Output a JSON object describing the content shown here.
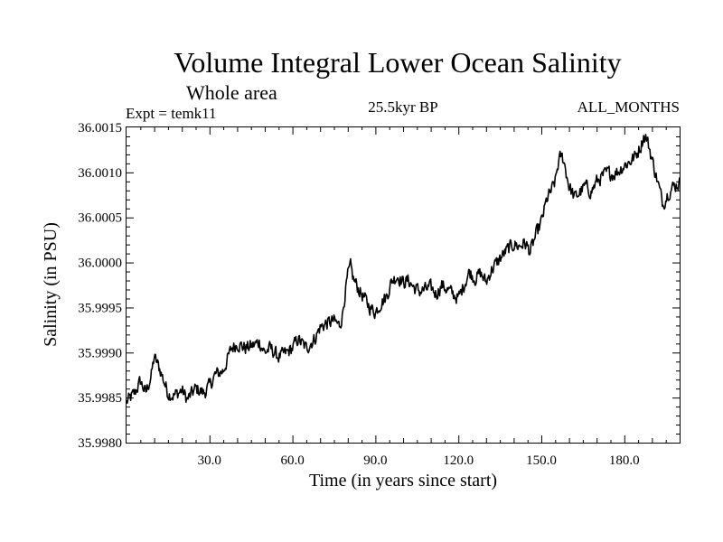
{
  "chart_data": {
    "type": "line",
    "title": "Volume Integral Lower Ocean Salinity",
    "subtitle": "Whole area",
    "experiment": "Expt = temk11",
    "period": "25.5kyr BP",
    "months": "ALL_MONTHS",
    "xlabel": "Time (in years since start)",
    "ylabel": "Salinity (in PSU)",
    "xlim": [
      0,
      200
    ],
    "ylim": [
      35.998,
      36.0015
    ],
    "xticks": [
      {
        "value": 30,
        "label": "30.0"
      },
      {
        "value": 60,
        "label": "60.0"
      },
      {
        "value": 90,
        "label": "90.0"
      },
      {
        "value": 120,
        "label": "120.0"
      },
      {
        "value": 150,
        "label": "150.0"
      },
      {
        "value": 180,
        "label": "180.0"
      }
    ],
    "yticks": [
      {
        "value": 35.998,
        "label": "35.9980"
      },
      {
        "value": 35.9985,
        "label": "35.9985"
      },
      {
        "value": 35.999,
        "label": "35.9990"
      },
      {
        "value": 35.9995,
        "label": "35.9995"
      },
      {
        "value": 36.0,
        "label": "36.0000"
      },
      {
        "value": 36.0005,
        "label": "36.0005"
      },
      {
        "value": 36.001,
        "label": "36.0010"
      },
      {
        "value": 36.0015,
        "label": "36.0015"
      }
    ],
    "series": [
      {
        "name": "Salinity",
        "color": "#000000",
        "noise_amplitude": 7e-05,
        "x": [
          0,
          3,
          5,
          7,
          9,
          10,
          12,
          15,
          17,
          20,
          22,
          25,
          28,
          30,
          32,
          35,
          38,
          40,
          43,
          46,
          48,
          50,
          52,
          55,
          58,
          60,
          62,
          65,
          68,
          70,
          72,
          75,
          77,
          78,
          79,
          80,
          81,
          82,
          84,
          86,
          88,
          90,
          92,
          94,
          96,
          98,
          100,
          102,
          104,
          106,
          108,
          110,
          112,
          114,
          116,
          118,
          120,
          122,
          124,
          126,
          128,
          130,
          132,
          134,
          136,
          138,
          140,
          142,
          144,
          146,
          148,
          150,
          152,
          154,
          155,
          156,
          157,
          158,
          159,
          160,
          162,
          164,
          166,
          168,
          170,
          172,
          174,
          176,
          178,
          180,
          182,
          184,
          186,
          187,
          188,
          189,
          190,
          192,
          194,
          196,
          198,
          200
        ],
        "y": [
          35.99845,
          35.99855,
          35.99868,
          35.99855,
          35.99875,
          35.99895,
          35.99882,
          35.99855,
          35.99852,
          35.99858,
          35.99848,
          35.9986,
          35.99855,
          35.99863,
          35.99875,
          35.9988,
          35.99905,
          35.9991,
          35.99905,
          35.99908,
          35.99912,
          35.999,
          35.99905,
          35.99895,
          35.999,
          35.99905,
          35.99915,
          35.99905,
          35.99915,
          35.99928,
          35.99932,
          35.99935,
          35.9993,
          35.9994,
          35.99965,
          35.99985,
          35.99995,
          35.99982,
          35.9997,
          35.9996,
          35.9995,
          35.99945,
          35.99955,
          35.99962,
          35.9998,
          35.99985,
          35.99978,
          35.9998,
          35.99972,
          35.99968,
          35.9997,
          35.99972,
          35.99965,
          35.99975,
          35.9997,
          35.99965,
          35.9996,
          35.99975,
          35.9999,
          35.99982,
          35.99988,
          35.99978,
          35.99992,
          36.0,
          36.00008,
          36.00015,
          36.0002,
          36.00018,
          36.00022,
          36.00012,
          36.0003,
          36.00045,
          36.0007,
          36.00082,
          36.0009,
          36.00108,
          36.00118,
          36.00115,
          36.001,
          36.00085,
          36.00072,
          36.00078,
          36.00085,
          36.00078,
          36.0009,
          36.00095,
          36.001,
          36.00098,
          36.00102,
          36.00108,
          36.00112,
          36.00118,
          36.0013,
          36.0014,
          36.00138,
          36.00128,
          36.00115,
          36.0009,
          36.00065,
          36.00078,
          36.00085,
          36.00088
        ]
      }
    ]
  }
}
